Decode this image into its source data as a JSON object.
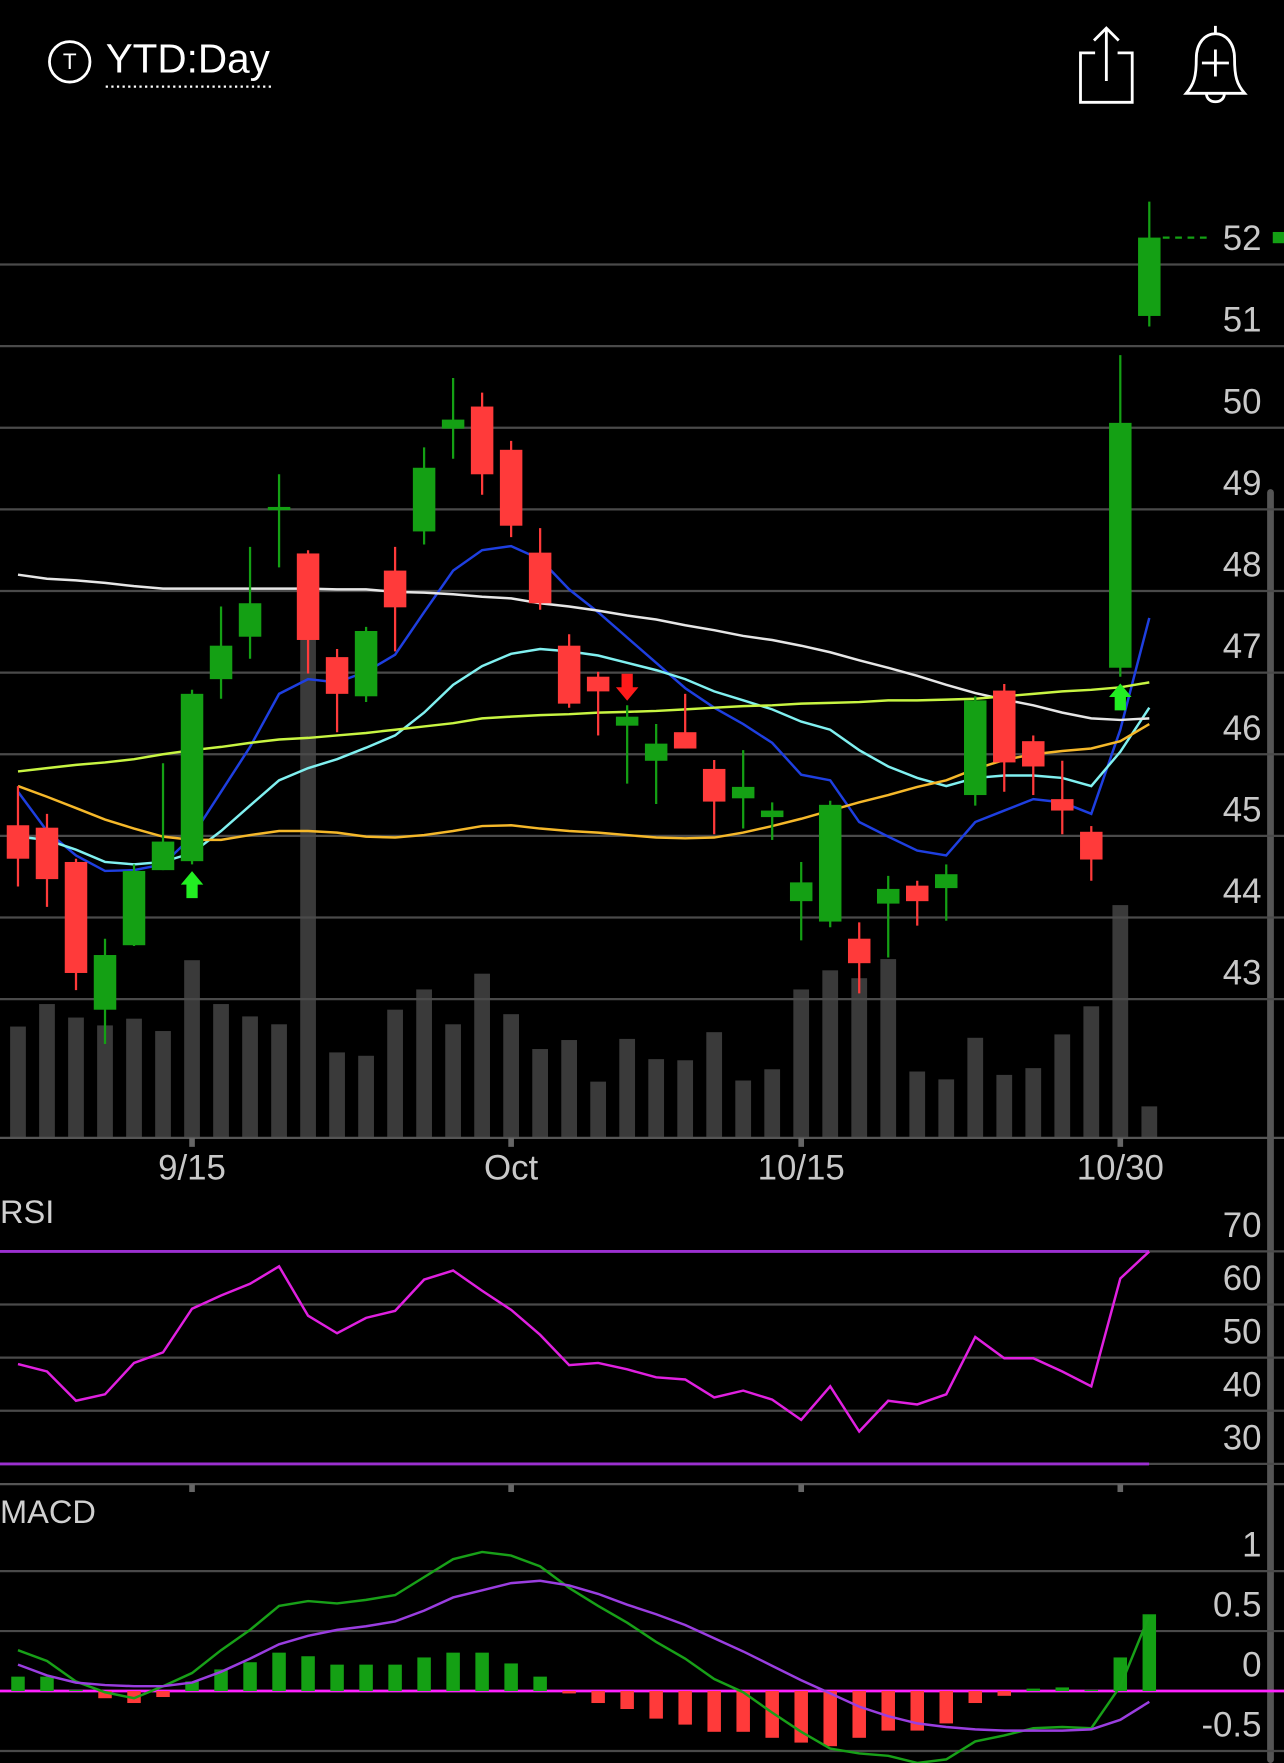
{
  "header": {
    "icon_letter": "T",
    "timeframe": "YTD:Day"
  },
  "chart_data": [
    {
      "type": "candlestick",
      "categories": [
        null,
        null,
        null,
        null,
        null,
        null,
        "9/15",
        null,
        null,
        null,
        null,
        null,
        null,
        null,
        null,
        null,
        null,
        "Oct",
        null,
        null,
        null,
        null,
        null,
        null,
        null,
        null,
        null,
        "10/15",
        null,
        null,
        null,
        null,
        null,
        null,
        null,
        null,
        null,
        null,
        "10/30",
        null
      ],
      "open": [
        45.13,
        45.1,
        44.68,
        42.87,
        43.66,
        44.58,
        44.69,
        46.92,
        47.44,
        48.99,
        48.46,
        47.19,
        46.71,
        48.25,
        48.73,
        49.99,
        50.26,
        49.73,
        48.47,
        47.33,
        46.95,
        46.35,
        45.92,
        46.27,
        45.82,
        45.46,
        45.23,
        44.2,
        43.95,
        43.74,
        44.17,
        44.39,
        44.36,
        45.5,
        46.78,
        46.16,
        45.45,
        45.05,
        47.06,
        51.37
      ],
      "high": [
        45.61,
        45.27,
        44.72,
        43.74,
        44.65,
        45.89,
        46.79,
        47.81,
        48.54,
        49.43,
        48.5,
        47.29,
        47.56,
        48.54,
        49.76,
        50.61,
        50.43,
        49.84,
        48.77,
        47.47,
        47.01,
        46.6,
        46.37,
        46.74,
        45.93,
        46.05,
        45.41,
        44.68,
        45.43,
        43.94,
        44.51,
        44.45,
        44.65,
        46.71,
        46.86,
        46.23,
        45.92,
        45.12,
        50.89,
        52.77
      ],
      "low": [
        44.38,
        44.13,
        43.11,
        42.45,
        43.65,
        44.58,
        44.65,
        46.68,
        47.17,
        48.29,
        46.99,
        46.27,
        46.64,
        47.26,
        48.57,
        49.62,
        49.18,
        48.66,
        47.77,
        46.57,
        46.23,
        45.64,
        45.39,
        46.07,
        45.02,
        45.09,
        44.95,
        43.72,
        43.88,
        43.07,
        43.51,
        43.9,
        43.96,
        45.37,
        45.54,
        45.5,
        45.02,
        44.45,
        46.95,
        51.24
      ],
      "close": [
        44.72,
        44.47,
        43.32,
        43.54,
        44.57,
        44.93,
        46.74,
        47.33,
        47.85,
        49.03,
        47.4,
        46.74,
        47.51,
        47.8,
        49.51,
        50.1,
        49.43,
        48.8,
        47.85,
        46.62,
        46.77,
        46.46,
        46.13,
        46.07,
        45.42,
        45.6,
        45.31,
        44.43,
        45.38,
        43.44,
        44.35,
        44.2,
        44.53,
        46.66,
        45.9,
        45.85,
        45.31,
        44.71,
        50.06,
        52.33
      ],
      "up_color": "#14a014",
      "down_color": "#ff3a3a",
      "volume": [
        99,
        119,
        107,
        100,
        106,
        95,
        158,
        119,
        108,
        101,
        447,
        76,
        73,
        114,
        132,
        101,
        146,
        110,
        79,
        87,
        50,
        88,
        70,
        69,
        94,
        51,
        61,
        132,
        149,
        142,
        159,
        59,
        52,
        89,
        56,
        62,
        92,
        117,
        207,
        28
      ],
      "volume_lim": [
        0,
        452
      ],
      "volume_color": "#3a3a3a",
      "series": [
        {
          "color": "#1e3fe0",
          "values": [
            45.54,
            45.06,
            44.76,
            44.57,
            44.58,
            44.65,
            44.99,
            45.54,
            46.09,
            46.74,
            46.92,
            46.88,
            47.01,
            47.22,
            47.74,
            48.25,
            48.5,
            48.55,
            48.39,
            48.02,
            47.74,
            47.43,
            47.12,
            46.81,
            46.57,
            46.37,
            46.14,
            45.75,
            45.68,
            45.17,
            44.99,
            44.82,
            44.76,
            45.17,
            45.31,
            45.45,
            45.41,
            45.27,
            46.3,
            47.67
          ]
        },
        {
          "color": "#80f0f0",
          "values": [
            44.99,
            44.95,
            44.83,
            44.68,
            44.65,
            44.68,
            44.79,
            45.06,
            45.37,
            45.68,
            45.83,
            45.94,
            46.08,
            46.23,
            46.51,
            46.85,
            47.08,
            47.23,
            47.29,
            47.26,
            47.21,
            47.12,
            47.03,
            46.92,
            46.77,
            46.66,
            46.55,
            46.4,
            46.3,
            46.05,
            45.85,
            45.71,
            45.61,
            45.71,
            45.74,
            45.74,
            45.71,
            45.61,
            46.03,
            46.57
          ]
        },
        {
          "color": "#e6e6e6",
          "values": [
            48.2,
            48.15,
            48.13,
            48.1,
            48.06,
            48.03,
            48.03,
            48.03,
            48.03,
            48.03,
            48.03,
            48.02,
            48.02,
            47.99,
            47.98,
            47.96,
            47.93,
            47.91,
            47.85,
            47.81,
            47.76,
            47.7,
            47.65,
            47.58,
            47.52,
            47.45,
            47.4,
            47.33,
            47.25,
            47.15,
            47.06,
            46.96,
            46.85,
            46.75,
            46.67,
            46.6,
            46.51,
            46.44,
            46.42,
            46.44
          ]
        },
        {
          "color": "#f5b82a",
          "values": [
            45.61,
            45.48,
            45.34,
            45.2,
            45.09,
            44.99,
            44.95,
            44.95,
            45.01,
            45.06,
            45.06,
            45.04,
            44.99,
            44.98,
            45.01,
            45.06,
            45.12,
            45.13,
            45.09,
            45.06,
            45.04,
            45.01,
            44.98,
            44.97,
            44.98,
            45.04,
            45.12,
            45.21,
            45.31,
            45.41,
            45.5,
            45.6,
            45.68,
            45.82,
            45.93,
            46.0,
            46.04,
            46.07,
            46.16,
            46.37
          ]
        },
        {
          "color": "#c8f542",
          "values": [
            45.79,
            45.83,
            45.87,
            45.9,
            45.94,
            46.0,
            46.05,
            46.09,
            46.14,
            46.18,
            46.2,
            46.23,
            46.26,
            46.3,
            46.34,
            46.38,
            46.44,
            46.46,
            46.48,
            46.49,
            46.51,
            46.52,
            46.53,
            46.55,
            46.57,
            46.59,
            46.6,
            46.62,
            46.63,
            46.64,
            46.66,
            46.66,
            46.67,
            46.68,
            46.71,
            46.74,
            46.77,
            46.79,
            46.82,
            46.88
          ]
        }
      ],
      "markers": [
        {
          "at": 6,
          "direction": "up",
          "color": "#22ee22"
        },
        {
          "at": 21,
          "direction": "down",
          "color": "#ff1a1a"
        },
        {
          "at": 38,
          "direction": "up",
          "color": "#22ee22"
        }
      ],
      "ylim": [
        41.3,
        53.45
      ],
      "yticks": [
        43,
        44,
        45,
        46,
        47,
        48,
        49,
        50,
        51,
        52
      ],
      "grid": true
    },
    {
      "type": "line",
      "title": "RSI",
      "color": "#e020e0",
      "values": [
        48.8,
        47.4,
        41.9,
        43.1,
        49.0,
        51.0,
        59.2,
        61.7,
        63.9,
        67.2,
        57.9,
        54.6,
        57.5,
        58.8,
        64.7,
        66.4,
        62.6,
        59.0,
        54.3,
        48.6,
        49.0,
        47.8,
        46.3,
        45.9,
        42.5,
        43.8,
        42.1,
        38.3,
        44.6,
        36.1,
        41.9,
        41.2,
        43.1,
        53.9,
        49.9,
        49.9,
        47.4,
        44.6,
        64.9,
        70.0
      ],
      "levels": [
        70,
        30
      ],
      "level_color": "#9b30d0",
      "ylim": [
        26,
        75
      ],
      "yticks": [
        30,
        40,
        50,
        60,
        70
      ],
      "grid": true
    },
    {
      "type": "macd",
      "title": "MACD",
      "series": [
        {
          "color": "#18a018",
          "values": [
            0.34,
            0.25,
            0.08,
            -0.01,
            -0.06,
            0.04,
            0.15,
            0.34,
            0.51,
            0.71,
            0.75,
            0.73,
            0.76,
            0.8,
            0.95,
            1.1,
            1.16,
            1.13,
            1.04,
            0.86,
            0.71,
            0.57,
            0.41,
            0.27,
            0.1,
            -0.01,
            -0.18,
            -0.34,
            -0.48,
            -0.52,
            -0.54,
            -0.6,
            -0.57,
            -0.42,
            -0.37,
            -0.31,
            -0.3,
            -0.31,
            0.04,
            0.63
          ]
        },
        {
          "color": "#9a3ee0",
          "values": [
            0.22,
            0.13,
            0.07,
            0.05,
            0.04,
            0.04,
            0.07,
            0.16,
            0.27,
            0.39,
            0.46,
            0.51,
            0.54,
            0.58,
            0.67,
            0.78,
            0.84,
            0.9,
            0.92,
            0.88,
            0.81,
            0.72,
            0.64,
            0.55,
            0.44,
            0.33,
            0.21,
            0.09,
            -0.02,
            -0.13,
            -0.21,
            -0.27,
            -0.3,
            -0.32,
            -0.33,
            -0.33,
            -0.33,
            -0.32,
            -0.24,
            -0.09
          ]
        }
      ],
      "histogram": [
        0.12,
        0.12,
        0.01,
        -0.06,
        -0.1,
        -0.05,
        0.08,
        0.18,
        0.24,
        0.32,
        0.29,
        0.22,
        0.22,
        0.22,
        0.28,
        0.32,
        0.32,
        0.23,
        0.12,
        -0.02,
        -0.1,
        -0.15,
        -0.23,
        -0.28,
        -0.34,
        -0.34,
        -0.39,
        -0.43,
        -0.46,
        -0.39,
        -0.33,
        -0.33,
        -0.27,
        -0.1,
        -0.04,
        0.02,
        0.03,
        0.01,
        0.28,
        0.64
      ],
      "up_color": "#14a014",
      "down_color": "#ff3a3a",
      "zero_color": "#ff22ff",
      "ylim": [
        -0.6,
        1.35
      ],
      "yticks": [
        -0.5,
        0,
        0.5,
        1
      ],
      "grid": true
    }
  ]
}
